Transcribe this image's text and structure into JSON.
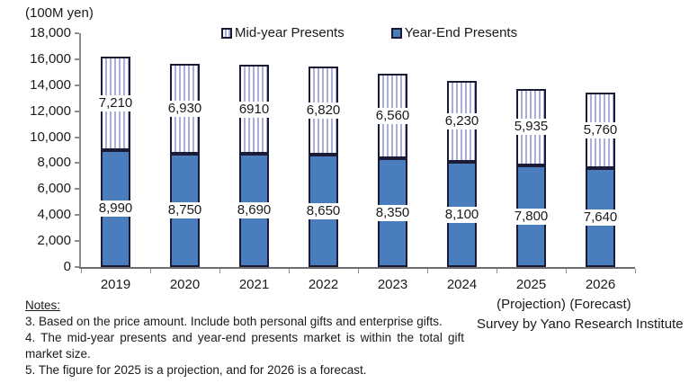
{
  "chart_data": {
    "type": "bar",
    "stacked": true,
    "unit_label": "(100M yen)",
    "categories": [
      "2019",
      "2020",
      "2021",
      "2022",
      "2023",
      "2024",
      "2025",
      "2026"
    ],
    "category_sublabels": [
      "",
      "",
      "",
      "",
      "",
      "",
      "(Projection)",
      "(Forecast)"
    ],
    "series": [
      {
        "name": "Year-End Presents",
        "style": "solid",
        "color": "#4a7dbe",
        "values": [
          8990,
          8750,
          8690,
          8650,
          8350,
          8100,
          7800,
          7640
        ],
        "labels": [
          "8,990",
          "8,750",
          "8,690",
          "8,650",
          "8,350",
          "8,100",
          "7,800",
          "7,640"
        ]
      },
      {
        "name": "Mid-year Presents",
        "style": "striped",
        "stripe_color": "#a8addc",
        "values": [
          7210,
          6930,
          6910,
          6820,
          6560,
          6230,
          5935,
          5760
        ],
        "labels": [
          "7,210",
          "6,930",
          "6910",
          "6,820",
          "6,560",
          "6,230",
          "5,935",
          "5,760"
        ]
      }
    ],
    "ylim": [
      0,
      18000
    ],
    "ytick_step": 2000,
    "yticks": [
      "18,000",
      "16,000",
      "14,000",
      "12,000",
      "10,000",
      "8,000",
      "6,000",
      "4,000",
      "2,000",
      "0"
    ],
    "legend": [
      "Mid-year Presents",
      "Year-End Presents"
    ],
    "legend_position": "top",
    "grid": false,
    "bar_border_color": "#1b1b38"
  },
  "notes": {
    "heading": "Notes:",
    "items": [
      "3. Based on the price amount. Include both personal gifts and enterprise gifts.",
      "4. The mid-year presents and year-end presents market is within the total gift market size.",
      "5. The figure for 2025 is a projection, and for 2026 is a forecast."
    ]
  },
  "survey_credit": "Survey by Yano Research Institute"
}
